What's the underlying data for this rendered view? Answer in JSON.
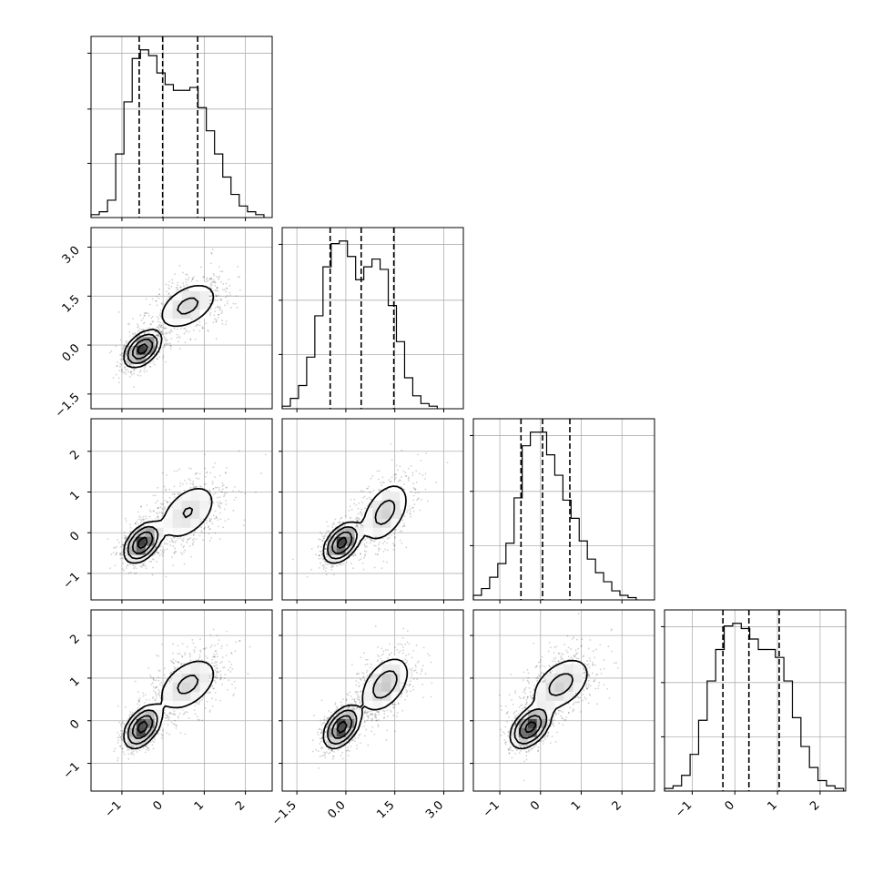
{
  "chart_data": {
    "type": "corner",
    "dimensions": 4,
    "grid": true,
    "colors": {
      "line": "#000000",
      "grid": "#b0b0b0",
      "points": "#000000",
      "background": "#ffffff"
    },
    "axes": {
      "x": [
        {
          "range": [
            -1.75,
            2.65
          ],
          "ticks": [
            -1,
            0,
            1,
            2
          ],
          "tick_labels": [
            "−1",
            "0",
            "1",
            "2"
          ]
        },
        {
          "range": [
            -1.95,
            3.6
          ],
          "ticks": [
            -1.5,
            0,
            1.5,
            3
          ],
          "tick_labels": [
            "−1.5",
            "0.0",
            "1.5",
            "3.0"
          ]
        },
        {
          "range": [
            -1.65,
            2.8
          ],
          "ticks": [
            -1,
            0,
            1,
            2
          ],
          "tick_labels": [
            "−1",
            "0",
            "1",
            "2"
          ]
        },
        {
          "range": [
            -1.65,
            2.6
          ],
          "ticks": [
            -1,
            0,
            1,
            2
          ],
          "tick_labels": [
            "−1",
            "0",
            "1",
            "2"
          ]
        }
      ],
      "y": [
        null,
        {
          "range": [
            -1.95,
            3.6
          ],
          "ticks": [
            -1.5,
            0,
            1.5,
            3
          ],
          "tick_labels": [
            "−1.5",
            "0.0",
            "1.5",
            "3.0"
          ]
        },
        {
          "range": [
            -1.65,
            2.8
          ],
          "ticks": [
            -1,
            0,
            1,
            2
          ],
          "tick_labels": [
            "−1",
            "0",
            "1",
            "2"
          ]
        },
        {
          "range": [
            -1.65,
            2.6
          ],
          "ticks": [
            -1,
            0,
            1,
            2
          ],
          "tick_labels": [
            "−1",
            "0",
            "1",
            "2"
          ]
        }
      ]
    },
    "histograms": [
      {
        "param": 0,
        "quantiles": [
          -0.58,
          -0.01,
          0.84
        ],
        "bin_edges": [
          -1.75,
          -1.55,
          -1.35,
          -1.15,
          -0.95,
          -0.75,
          -0.55,
          -0.35,
          -0.15,
          0.05,
          0.25,
          0.45,
          0.65,
          0.85,
          1.05,
          1.25,
          1.45,
          1.65,
          1.85,
          2.05,
          2.25,
          2.45
        ],
        "counts": [
          1,
          2,
          6,
          22,
          40,
          55,
          58,
          56,
          50,
          46,
          44,
          44,
          45,
          38,
          30,
          22,
          14,
          8,
          4,
          2,
          1
        ]
      },
      {
        "param": 1,
        "quantiles": [
          -0.48,
          0.47,
          1.47
        ],
        "bin_edges": [
          -1.95,
          -1.7,
          -1.45,
          -1.2,
          -0.95,
          -0.7,
          -0.45,
          -0.2,
          0.05,
          0.3,
          0.55,
          0.8,
          1.05,
          1.3,
          1.55,
          1.8,
          2.05,
          2.3,
          2.55,
          2.8
        ],
        "counts": [
          1,
          4,
          9,
          20,
          36,
          55,
          64,
          65,
          59,
          50,
          55,
          58,
          54,
          40,
          26,
          12,
          5,
          2,
          1
        ]
      },
      {
        "param": 2,
        "quantiles": [
          -0.48,
          0.05,
          0.72
        ],
        "bin_edges": [
          -1.65,
          -1.45,
          -1.25,
          -1.05,
          -0.85,
          -0.65,
          -0.45,
          -0.25,
          -0.05,
          0.15,
          0.35,
          0.55,
          0.75,
          0.95,
          1.15,
          1.35,
          1.55,
          1.75,
          1.95,
          2.15,
          2.35
        ],
        "counts": [
          2,
          5,
          10,
          16,
          25,
          45,
          68,
          74,
          74,
          64,
          55,
          44,
          36,
          26,
          18,
          12,
          8,
          4,
          2,
          1
        ]
      },
      {
        "param": 3,
        "quantiles": [
          -0.28,
          0.33,
          1.04
        ],
        "bin_edges": [
          -1.65,
          -1.45,
          -1.25,
          -1.05,
          -0.85,
          -0.65,
          -0.45,
          -0.25,
          -0.05,
          0.15,
          0.35,
          0.55,
          0.75,
          0.95,
          1.15,
          1.35,
          1.55,
          1.75,
          1.95,
          2.15,
          2.35,
          2.55
        ],
        "counts": [
          1,
          2,
          6,
          14,
          27,
          42,
          54,
          63,
          64,
          62,
          58,
          54,
          54,
          51,
          42,
          28,
          17,
          9,
          4,
          2,
          1
        ]
      }
    ],
    "components": [
      {
        "weight": 0.55,
        "mean": [
          -0.5,
          -0.12,
          -0.25,
          -0.15
        ],
        "sd": [
          0.2,
          0.25,
          0.22,
          0.22
        ]
      },
      {
        "weight": 0.45,
        "mean": [
          0.6,
          1.2,
          0.5,
          0.85
        ],
        "sd": [
          0.4,
          0.4,
          0.4,
          0.35
        ]
      }
    ]
  }
}
